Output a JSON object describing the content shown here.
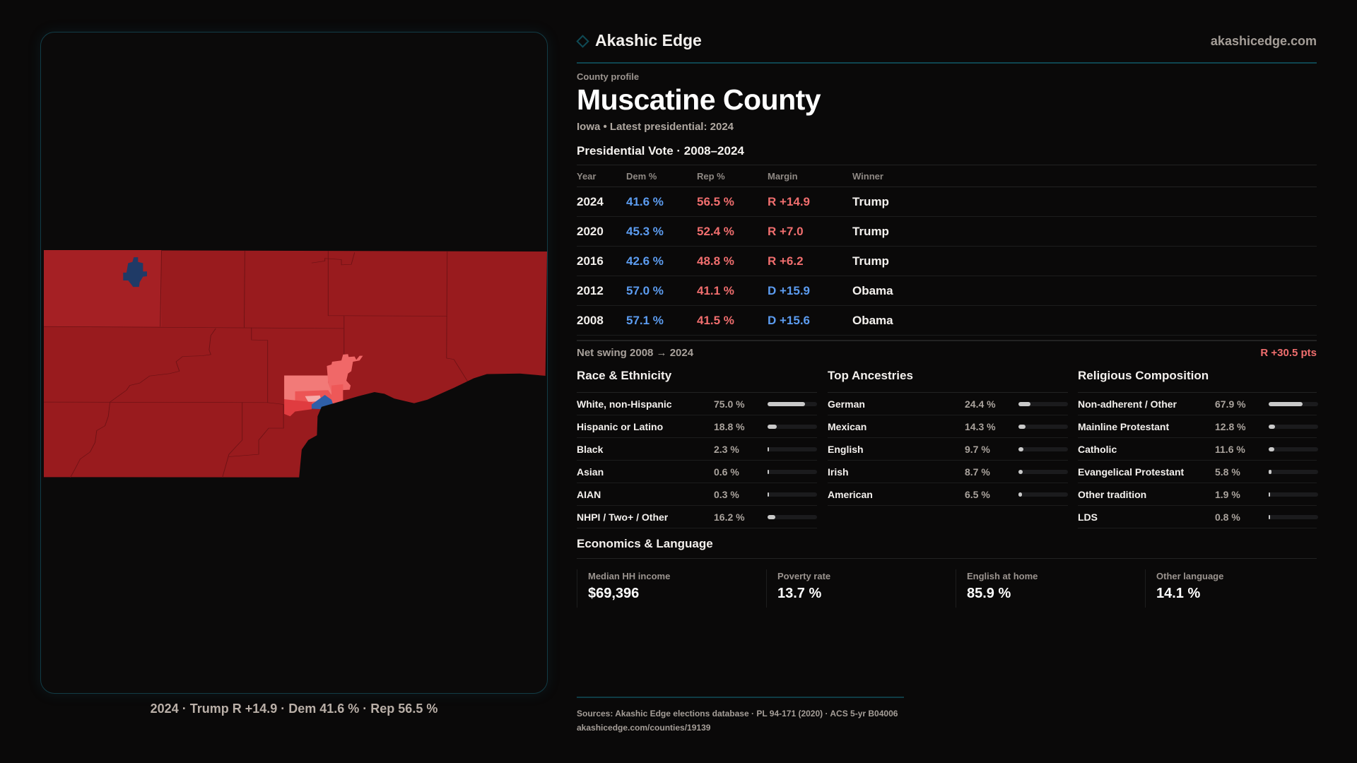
{
  "brand": {
    "name": "Akashic Edge",
    "url": "akashicedge.com"
  },
  "profile": {
    "kicker": "County profile",
    "title": "Muscatine County",
    "subtitle": "Iowa • Latest presidential: 2024"
  },
  "map": {
    "caption": "2024 · Trump R +14.9 · Dem 41.6 % · Rep 56.5 %",
    "colors": {
      "safe_r": "#991b1e",
      "lean_r": "#a52024",
      "light_r": "#f27a78",
      "mid_r": "#ee5b5b",
      "strong_r": "#e03c40",
      "pale_r": "#f7aaa8",
      "dem": "#2f5fa8",
      "dem_dark": "#1f3a66"
    }
  },
  "votes": {
    "heading": "Presidential Vote · 2008–2024",
    "columns": [
      "Year",
      "Dem %",
      "Rep %",
      "Margin",
      "Winner"
    ],
    "rows": [
      {
        "year": "2024",
        "dem": "41.6 %",
        "rep": "56.5 %",
        "margin": "R +14.9",
        "party": "R",
        "winner": "Trump"
      },
      {
        "year": "2020",
        "dem": "45.3 %",
        "rep": "52.4 %",
        "margin": "R +7.0",
        "party": "R",
        "winner": "Trump"
      },
      {
        "year": "2016",
        "dem": "42.6 %",
        "rep": "48.8 %",
        "margin": "R +6.2",
        "party": "R",
        "winner": "Trump"
      },
      {
        "year": "2012",
        "dem": "57.0 %",
        "rep": "41.1 %",
        "margin": "D +15.9",
        "party": "D",
        "winner": "Obama"
      },
      {
        "year": "2008",
        "dem": "57.1 %",
        "rep": "41.5 %",
        "margin": "D +15.6",
        "party": "D",
        "winner": "Obama"
      }
    ],
    "swing_label": "Net swing 2008 → 2024",
    "swing_value": "R +30.5 pts"
  },
  "race": {
    "heading": "Race & Ethnicity",
    "items": [
      {
        "label": "White, non-Hispanic",
        "value": "75.0 %",
        "pct": 75.0
      },
      {
        "label": "Hispanic or Latino",
        "value": "18.8 %",
        "pct": 18.8
      },
      {
        "label": "Black",
        "value": "2.3 %",
        "pct": 2.3
      },
      {
        "label": "Asian",
        "value": "0.6 %",
        "pct": 0.6
      },
      {
        "label": "AIAN",
        "value": "0.3 %",
        "pct": 0.3
      },
      {
        "label": "NHPI / Two+ / Other",
        "value": "16.2 %",
        "pct": 16.2
      }
    ]
  },
  "ancestry": {
    "heading": "Top Ancestries",
    "items": [
      {
        "label": "German",
        "value": "24.4 %",
        "pct": 24.4
      },
      {
        "label": "Mexican",
        "value": "14.3 %",
        "pct": 14.3
      },
      {
        "label": "English",
        "value": "9.7 %",
        "pct": 9.7
      },
      {
        "label": "Irish",
        "value": "8.7 %",
        "pct": 8.7
      },
      {
        "label": "American",
        "value": "6.5 %",
        "pct": 6.5
      }
    ]
  },
  "religion": {
    "heading": "Religious Composition",
    "items": [
      {
        "label": "Non-adherent / Other",
        "value": "67.9 %",
        "pct": 67.9
      },
      {
        "label": "Mainline Protestant",
        "value": "12.8 %",
        "pct": 12.8
      },
      {
        "label": "Catholic",
        "value": "11.6 %",
        "pct": 11.6
      },
      {
        "label": "Evangelical Protestant",
        "value": "5.8 %",
        "pct": 5.8
      },
      {
        "label": "Other tradition",
        "value": "1.9 %",
        "pct": 1.9
      },
      {
        "label": "LDS",
        "value": "0.8 %",
        "pct": 0.8
      }
    ]
  },
  "economics": {
    "heading": "Economics & Language",
    "cards": [
      {
        "label": "Median HH income",
        "value": "$69,396"
      },
      {
        "label": "Poverty rate",
        "value": "13.7 %"
      },
      {
        "label": "English at home",
        "value": "85.9 %"
      },
      {
        "label": "Other language",
        "value": "14.1 %"
      }
    ]
  },
  "footer": {
    "sources": "Sources: Akashic Edge elections database · PL 94-171 (2020) · ACS 5-yr B04006",
    "link": "akashicedge.com/counties/19139"
  }
}
